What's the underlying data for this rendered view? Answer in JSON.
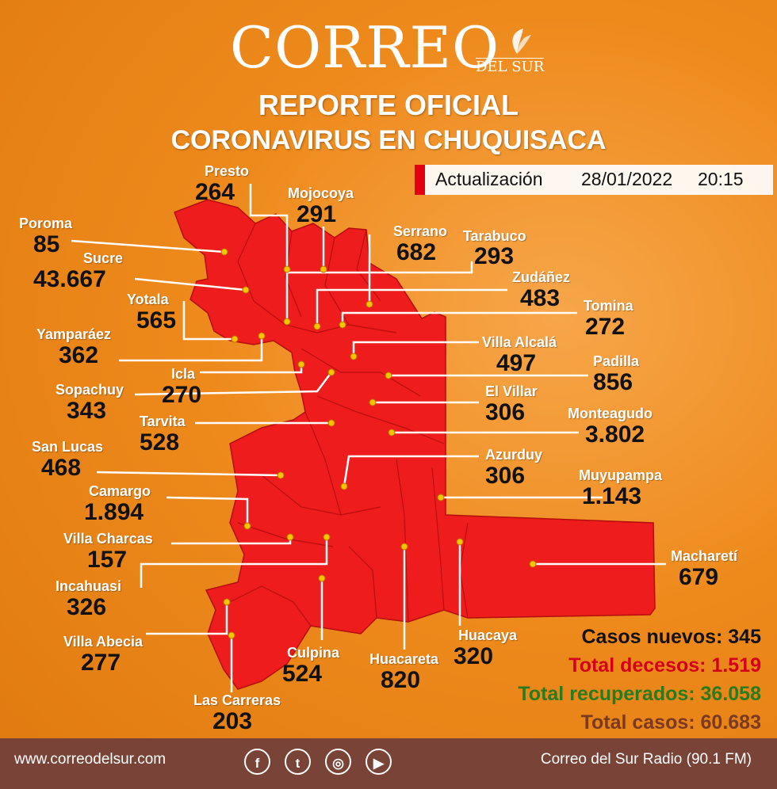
{
  "brand": {
    "logo": "CORREO",
    "logo_sub": "DEL SUR"
  },
  "header": {
    "title": "REPORTE OFICIAL",
    "subtitle": "CORONAVIRUS EN CHUQUISACA"
  },
  "update": {
    "label": "Actualización",
    "date": "28/01/2022",
    "time": "20:15"
  },
  "municipalities": [
    {
      "name": "Presto",
      "value": "264"
    },
    {
      "name": "Mojocoya",
      "value": "291"
    },
    {
      "name": "Poroma",
      "value": "85"
    },
    {
      "name": "Serrano",
      "value": "682"
    },
    {
      "name": "Tarabuco",
      "value": "293"
    },
    {
      "name": "Sucre",
      "value": "43.667"
    },
    {
      "name": "Zudáñez",
      "value": "483"
    },
    {
      "name": "Yotala",
      "value": "565"
    },
    {
      "name": "Tomina",
      "value": "272"
    },
    {
      "name": "Yamparáez",
      "value": "362"
    },
    {
      "name": "Villa Alcalá",
      "value": "497"
    },
    {
      "name": "Icla",
      "value": "270"
    },
    {
      "name": "Padilla",
      "value": "856"
    },
    {
      "name": "Sopachuy",
      "value": "343"
    },
    {
      "name": "El Villar",
      "value": "306"
    },
    {
      "name": "Tarvita",
      "value": "528"
    },
    {
      "name": "Monteagudo",
      "value": "3.802"
    },
    {
      "name": "San Lucas",
      "value": "468"
    },
    {
      "name": "Azurduy",
      "value": "306"
    },
    {
      "name": "Camargo",
      "value": "1.894"
    },
    {
      "name": "Muyupampa",
      "value": "1.143"
    },
    {
      "name": "Villa Charcas",
      "value": "157"
    },
    {
      "name": "Macharetí",
      "value": "679"
    },
    {
      "name": "Incahuasi",
      "value": "326"
    },
    {
      "name": "Villa Abecia",
      "value": "277"
    },
    {
      "name": "Huacaya",
      "value": "320"
    },
    {
      "name": "Culpina",
      "value": "524"
    },
    {
      "name": "Huacareta",
      "value": "820"
    },
    {
      "name": "Las Carreras",
      "value": "203"
    }
  ],
  "stats": {
    "new_cases": "Casos nuevos: 345",
    "deaths": "Total decesos: 1.519",
    "recovered": "Total recuperados: 36.058",
    "total": "Total casos: 60.683"
  },
  "colors": {
    "new_cases": "#111111",
    "deaths": "#d4001a",
    "recovered": "#2b7a1e",
    "total": "#7a3a22",
    "map": "#ee1c1c"
  },
  "footer": {
    "website": "www.correodelsur.com",
    "radio": "Correo del Sur Radio (90.1 FM)",
    "social": [
      {
        "icon": "facebook-icon",
        "glyph": "f"
      },
      {
        "icon": "twitter-icon",
        "glyph": "t"
      },
      {
        "icon": "instagram-icon",
        "glyph": "◎"
      },
      {
        "icon": "youtube-icon",
        "glyph": "▶"
      }
    ]
  }
}
